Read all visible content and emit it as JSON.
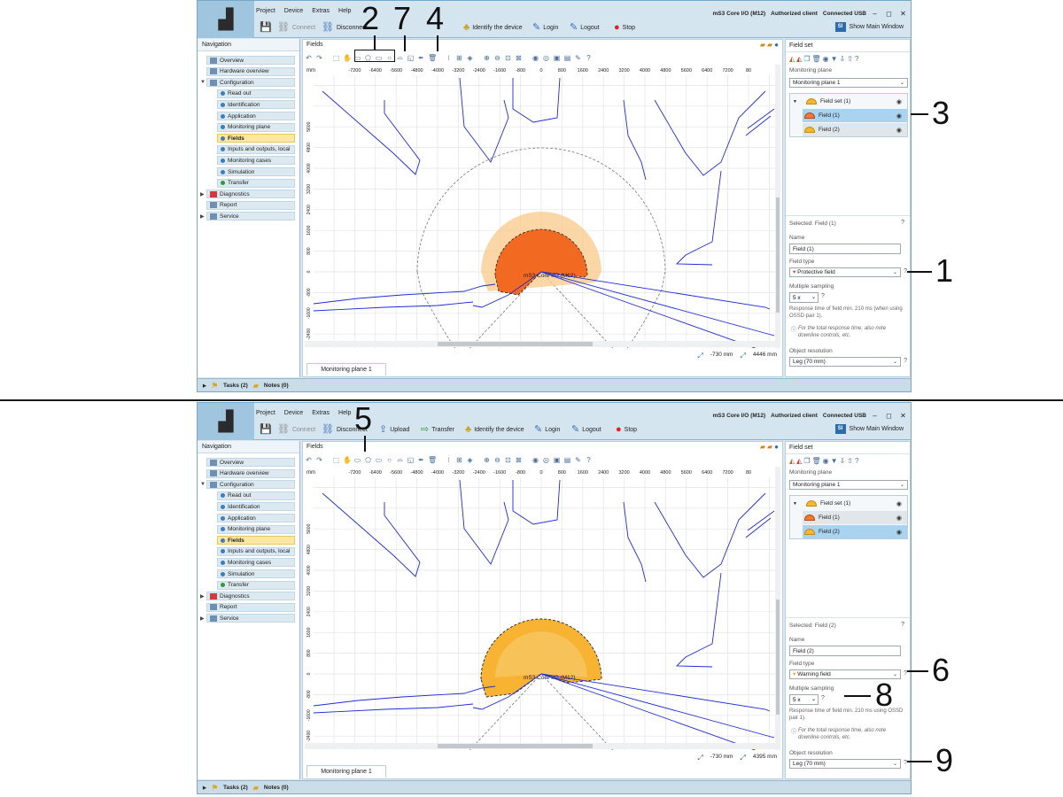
{
  "app": {
    "menu": [
      "Project",
      "Device",
      "Extras",
      "Help"
    ],
    "toolbar": {
      "connect": "Connect",
      "disconnect": "Disconnect",
      "upload": "Upload",
      "transfer": "Transfer",
      "identify": "Identify the device",
      "login": "Login",
      "logout": "Logout",
      "stop": "Stop"
    },
    "status": {
      "device": "mS3 Core I/O (M12)",
      "client": "Authorized client",
      "connection": "Connected USB"
    },
    "show_main": "Show Main Window",
    "show_main_icon": "SI"
  },
  "nav": {
    "title": "Navigation",
    "items": [
      {
        "label": "Overview"
      },
      {
        "label": "Hardware overview"
      },
      {
        "label": "Configuration"
      },
      {
        "label": "Read out"
      },
      {
        "label": "Identification"
      },
      {
        "label": "Application"
      },
      {
        "label": "Monitoring plane"
      },
      {
        "label": "Fields"
      },
      {
        "label": "Inputs and outputs, local"
      },
      {
        "label": "Monitoring cases"
      },
      {
        "label": "Simulation"
      },
      {
        "label": "Transfer"
      },
      {
        "label": "Diagnostics"
      },
      {
        "label": "Report"
      },
      {
        "label": "Service"
      }
    ]
  },
  "center": {
    "title": "Fields",
    "unit": "mm",
    "x_ticks": [
      "-7200",
      "-6400",
      "-5600",
      "-4800",
      "-4000",
      "-3200",
      "-2400",
      "-1600",
      "-800",
      "0",
      "800",
      "1600",
      "2400",
      "3200",
      "4000",
      "4800",
      "5600",
      "6400",
      "7200",
      "80"
    ],
    "y_ticks_top": [
      "5600",
      "4800",
      "4000",
      "3200",
      "2400",
      "1600",
      "800",
      "0",
      "-800",
      "-1600",
      "-2400",
      "-3200"
    ],
    "y_ticks_bottom": [
      "5600",
      "4800",
      "4000",
      "3200",
      "2400",
      "1600",
      "800",
      "0",
      "-800",
      "-1600",
      "-2400",
      "-3200"
    ],
    "device_label": "mS3 Core I/O (M12)",
    "plane_tab": "Monitoring plane 1",
    "panel1": {
      "coord_x": "-730 mm",
      "coord_y": "4446 mm"
    },
    "panel2": {
      "coord_x": "-730 mm",
      "coord_y": "4395 mm"
    }
  },
  "right": {
    "title": "Field set",
    "plane_label": "Monitoring plane",
    "plane_value": "Monitoring plane 1",
    "tree": {
      "set": "Field set (1)",
      "field1": "Field (1)",
      "field2": "Field (2)"
    },
    "name_label": "Name",
    "field_type_label": "Field type",
    "sampling_label": "Multiple sampling",
    "sampling_value": "5 x",
    "resp_note": "Response time of field min. 210 ms (when using OSSD pair 1).",
    "downstream_note": "For the total response time, also note downline controls, etc.",
    "resp_note_2": "Response time of field min. 210 ms using OSSD pair 1).",
    "resolution_label": "Object resolution",
    "resolution_value": "Leg (70 mm)",
    "panel1": {
      "selected": "Selected: Field (1)",
      "name": "Field (1)",
      "type": "Protective field"
    },
    "panel2": {
      "selected": "Selected: Field (2)",
      "name": "Field (2)",
      "type": "Warning field"
    }
  },
  "bottom": {
    "tasks": "Tasks (2)",
    "notes": "Notes (0)"
  },
  "callouts": {
    "c1": "1",
    "c2": "2",
    "c3": "3",
    "c4": "4",
    "c5": "5",
    "c6": "6",
    "c7": "7",
    "c8": "8",
    "c9": "9"
  },
  "colors": {
    "protective": "#f26a21",
    "protective_halo": "#f9c98a",
    "warning": "#f8b332",
    "contour": "#1d2bd6",
    "selected_nav": "#fde7a3",
    "selected_tree": "#a9d3ef"
  }
}
